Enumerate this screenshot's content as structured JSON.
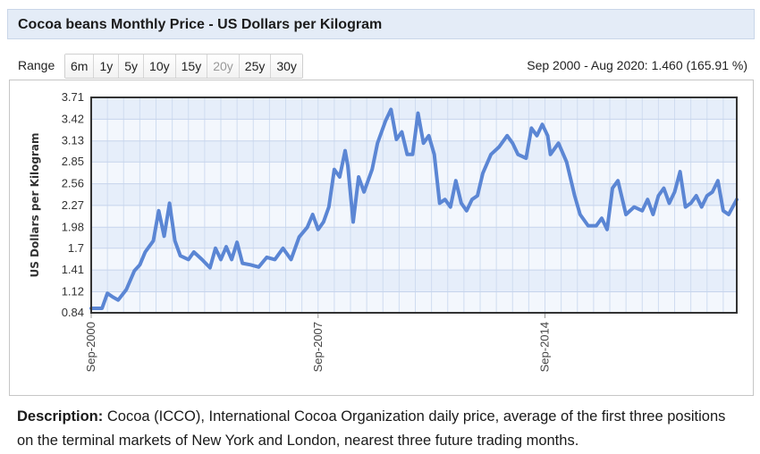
{
  "header": {
    "title": "Cocoa beans Monthly Price - US Dollars per Kilogram"
  },
  "range": {
    "label": "Range",
    "buttons": [
      {
        "label": "6m",
        "enabled": true
      },
      {
        "label": "1y",
        "enabled": true
      },
      {
        "label": "5y",
        "enabled": true
      },
      {
        "label": "10y",
        "enabled": true
      },
      {
        "label": "15y",
        "enabled": true
      },
      {
        "label": "20y",
        "enabled": false
      },
      {
        "label": "25y",
        "enabled": true
      },
      {
        "label": "30y",
        "enabled": true
      }
    ],
    "summary": "Sep 2000 - Aug 2020: 1.460 (165.91 %)"
  },
  "chart_data": {
    "type": "line",
    "title": "",
    "xlabel": "",
    "ylabel": "US Dollars per Kilogram",
    "yticks": [
      "0.84",
      "1.12",
      "1.41",
      "1.7",
      "1.98",
      "2.27",
      "2.56",
      "2.85",
      "3.13",
      "3.42",
      "3.71"
    ],
    "ylim": [
      0.84,
      3.71
    ],
    "xlim": [
      "2000-09",
      "2020-08"
    ],
    "xticks": [
      "Sep-2000",
      "Sep-2007",
      "Sep-2014"
    ],
    "grid": true,
    "line_color": "#5b86d4",
    "series": [
      {
        "name": "",
        "points": [
          [
            "2000-09",
            0.9
          ],
          [
            "2001-01",
            0.9
          ],
          [
            "2001-03",
            1.1
          ],
          [
            "2001-05",
            1.05
          ],
          [
            "2001-07",
            1.01
          ],
          [
            "2001-10",
            1.15
          ],
          [
            "2002-01",
            1.4
          ],
          [
            "2002-03",
            1.48
          ],
          [
            "2002-05",
            1.65
          ],
          [
            "2002-08",
            1.8
          ],
          [
            "2002-10",
            2.2
          ],
          [
            "2002-12",
            1.86
          ],
          [
            "2003-02",
            2.3
          ],
          [
            "2003-04",
            1.8
          ],
          [
            "2003-06",
            1.6
          ],
          [
            "2003-09",
            1.55
          ],
          [
            "2003-11",
            1.65
          ],
          [
            "2004-02",
            1.55
          ],
          [
            "2004-05",
            1.44
          ],
          [
            "2004-07",
            1.7
          ],
          [
            "2004-09",
            1.55
          ],
          [
            "2004-11",
            1.72
          ],
          [
            "2005-01",
            1.55
          ],
          [
            "2005-03",
            1.78
          ],
          [
            "2005-05",
            1.5
          ],
          [
            "2005-08",
            1.48
          ],
          [
            "2005-11",
            1.45
          ],
          [
            "2006-02",
            1.58
          ],
          [
            "2006-05",
            1.55
          ],
          [
            "2006-08",
            1.7
          ],
          [
            "2006-11",
            1.55
          ],
          [
            "2007-02",
            1.85
          ],
          [
            "2007-05",
            1.98
          ],
          [
            "2007-07",
            2.15
          ],
          [
            "2007-09",
            1.95
          ],
          [
            "2007-11",
            2.05
          ],
          [
            "2008-01",
            2.25
          ],
          [
            "2008-03",
            2.75
          ],
          [
            "2008-05",
            2.65
          ],
          [
            "2008-07",
            3.0
          ],
          [
            "2008-08",
            2.8
          ],
          [
            "2008-10",
            2.05
          ],
          [
            "2008-12",
            2.65
          ],
          [
            "2009-02",
            2.45
          ],
          [
            "2009-05",
            2.75
          ],
          [
            "2009-07",
            3.1
          ],
          [
            "2009-10",
            3.4
          ],
          [
            "2009-12",
            3.55
          ],
          [
            "2010-02",
            3.15
          ],
          [
            "2010-04",
            3.25
          ],
          [
            "2010-06",
            2.95
          ],
          [
            "2010-08",
            2.95
          ],
          [
            "2010-10",
            3.5
          ],
          [
            "2010-12",
            3.1
          ],
          [
            "2011-02",
            3.2
          ],
          [
            "2011-04",
            2.95
          ],
          [
            "2011-06",
            2.3
          ],
          [
            "2011-08",
            2.35
          ],
          [
            "2011-10",
            2.25
          ],
          [
            "2011-12",
            2.6
          ],
          [
            "2012-02",
            2.3
          ],
          [
            "2012-04",
            2.2
          ],
          [
            "2012-06",
            2.35
          ],
          [
            "2012-08",
            2.4
          ],
          [
            "2012-10",
            2.7
          ],
          [
            "2013-01",
            2.95
          ],
          [
            "2013-04",
            3.05
          ],
          [
            "2013-07",
            3.2
          ],
          [
            "2013-09",
            3.1
          ],
          [
            "2013-11",
            2.95
          ],
          [
            "2014-02",
            2.9
          ],
          [
            "2014-04",
            3.3
          ],
          [
            "2014-06",
            3.2
          ],
          [
            "2014-08",
            3.35
          ],
          [
            "2014-10",
            3.2
          ],
          [
            "2014-11",
            2.95
          ],
          [
            "2015-02",
            3.1
          ],
          [
            "2015-05",
            2.85
          ],
          [
            "2015-08",
            2.4
          ],
          [
            "2015-10",
            2.15
          ],
          [
            "2016-01",
            2.0
          ],
          [
            "2016-04",
            2.0
          ],
          [
            "2016-06",
            2.1
          ],
          [
            "2016-08",
            1.95
          ],
          [
            "2016-10",
            2.5
          ],
          [
            "2016-12",
            2.6
          ],
          [
            "2017-03",
            2.15
          ],
          [
            "2017-06",
            2.25
          ],
          [
            "2017-09",
            2.2
          ],
          [
            "2017-11",
            2.35
          ],
          [
            "2018-01",
            2.15
          ],
          [
            "2018-03",
            2.4
          ],
          [
            "2018-05",
            2.5
          ],
          [
            "2018-07",
            2.3
          ],
          [
            "2018-09",
            2.45
          ],
          [
            "2018-11",
            2.72
          ],
          [
            "2019-01",
            2.25
          ],
          [
            "2019-03",
            2.3
          ],
          [
            "2019-05",
            2.4
          ],
          [
            "2019-07",
            2.25
          ],
          [
            "2019-09",
            2.4
          ],
          [
            "2019-11",
            2.45
          ],
          [
            "2020-01",
            2.6
          ],
          [
            "2020-03",
            2.2
          ],
          [
            "2020-05",
            2.15
          ],
          [
            "2020-08",
            2.35
          ]
        ]
      }
    ]
  },
  "description": {
    "label": "Description:",
    "text": "Cocoa (ICCO), International Cocoa Organization daily price, average of the first three positions on the terminal markets of New York and London, nearest three future trading months."
  }
}
